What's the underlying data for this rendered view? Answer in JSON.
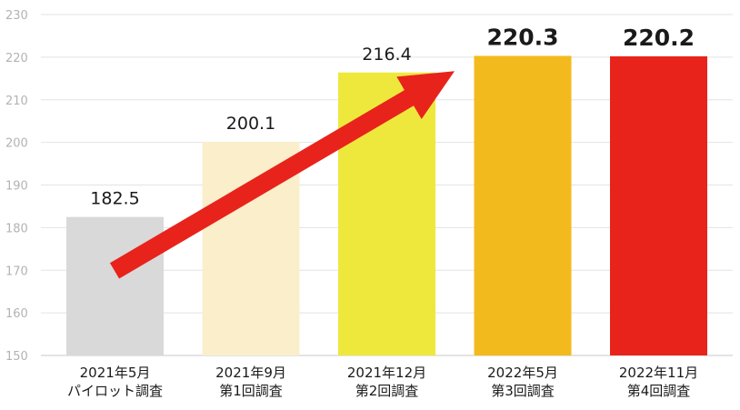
{
  "chart_data": {
    "type": "bar",
    "categories": [
      [
        "2021年5月",
        "パイロット調査"
      ],
      [
        "2021年9月",
        "第1回調査"
      ],
      [
        "2021年12月",
        "第2回調査"
      ],
      [
        "2022年5月",
        "第3回調査"
      ],
      [
        "2022年11月",
        "第4回調査"
      ]
    ],
    "values": [
      182.5,
      200.1,
      216.4,
      220.3,
      220.2
    ],
    "value_labels": [
      "182.5",
      "200.1",
      "216.4",
      "220.3",
      "220.2"
    ],
    "bold_labels": [
      false,
      false,
      false,
      true,
      true
    ],
    "colors": [
      "#d9d9d9",
      "#fbeecb",
      "#efe83c",
      "#f2ba1c",
      "#e8231c"
    ],
    "ylim": [
      150,
      230
    ],
    "yticks": [
      150,
      160,
      170,
      180,
      190,
      200,
      210,
      220,
      230
    ],
    "grid": true,
    "annotation": {
      "type": "arrow",
      "color": "#e8231c",
      "from_value": 172,
      "to_value": 215,
      "meaning": "upward trend"
    }
  }
}
